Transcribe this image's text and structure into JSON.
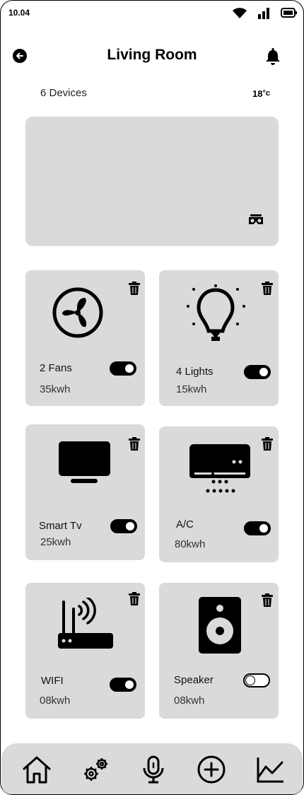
{
  "status_bar": {
    "time": "10.04"
  },
  "header": {
    "title": "Living Room"
  },
  "summary": {
    "device_count": "6 Devices",
    "temperature": "18",
    "temperature_unit": "°c"
  },
  "devices": [
    {
      "label": "2 Fans",
      "energy": "35kwh",
      "on": true
    },
    {
      "label": "4 Lights",
      "energy": "15kwh",
      "on": true
    },
    {
      "label": "Smart Tv",
      "energy": "25kwh",
      "on": true
    },
    {
      "label": "A/C",
      "energy": "80kwh",
      "on": true
    },
    {
      "label": "WIFI",
      "energy": "08kwh",
      "on": true
    },
    {
      "label": "Speaker",
      "energy": "08kwh",
      "on": false
    }
  ],
  "icons": {
    "back": "back-arrow-icon",
    "bell": "bell-icon",
    "vr": "vr-headset-icon",
    "trash": "trash-icon",
    "nav": [
      "home-icon",
      "settings-icon",
      "microphone-icon",
      "add-icon",
      "chart-icon"
    ]
  }
}
